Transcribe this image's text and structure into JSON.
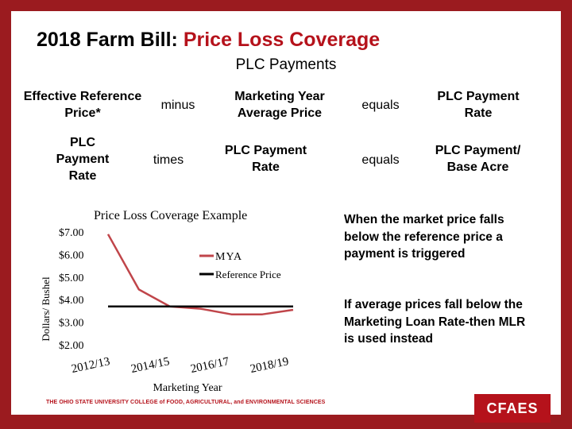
{
  "title": {
    "main": "2018 Farm Bill: ",
    "accent": "Price Loss Coverage"
  },
  "subtitle": "PLC Payments",
  "formula": {
    "row1": {
      "term1": "Effective Reference Price*",
      "op1": "minus",
      "term2": "Marketing Year Average Price",
      "op2": "equals",
      "result": "PLC Payment Rate"
    },
    "row2": {
      "term1": "PLC Payment Rate",
      "op1": "times",
      "term2": "PLC Payment Rate",
      "op2": "equals",
      "result": "PLC Payment/ Base Acre"
    }
  },
  "notes": {
    "note1": "When the market price falls below the reference price a payment is triggered",
    "note2": "If average prices fall below the Marketing Loan Rate-then MLR is used instead"
  },
  "footer": {
    "university": "THE OHIO STATE UNIVERSITY COLLEGE of FOOD, AGRICULTURAL, and ENVIRONMENTAL SCIENCES",
    "logo": "CFAES"
  },
  "colors": {
    "brand": "#b5121b",
    "background": "#9b1b1f",
    "mya_line": "#c0454a",
    "reference_line": "#000000"
  },
  "chart_data": {
    "type": "line",
    "title": "Price Loss Coverage Example",
    "xlabel": "Marketing Year",
    "ylabel": "Dollars/ Bushel",
    "x_tick_labels": [
      "2012/13",
      "2014/15",
      "2016/17",
      "2018/19"
    ],
    "y_tick_labels": [
      "$2.00",
      "$3.00",
      "$4.00",
      "$5.00",
      "$6.00",
      "$7.00"
    ],
    "ylim": [
      2,
      7
    ],
    "x": [
      "2012/13",
      "2013/14",
      "2014/15",
      "2015/16",
      "2016/17",
      "2017/18",
      "2018/19"
    ],
    "series": [
      {
        "name": "MYA",
        "values": [
          6.9,
          4.45,
          3.7,
          3.6,
          3.35,
          3.35,
          3.55
        ]
      },
      {
        "name": "Reference Price",
        "values": [
          3.7,
          3.7,
          3.7,
          3.7,
          3.7,
          3.7,
          3.7
        ]
      }
    ],
    "legend": "top-right"
  }
}
